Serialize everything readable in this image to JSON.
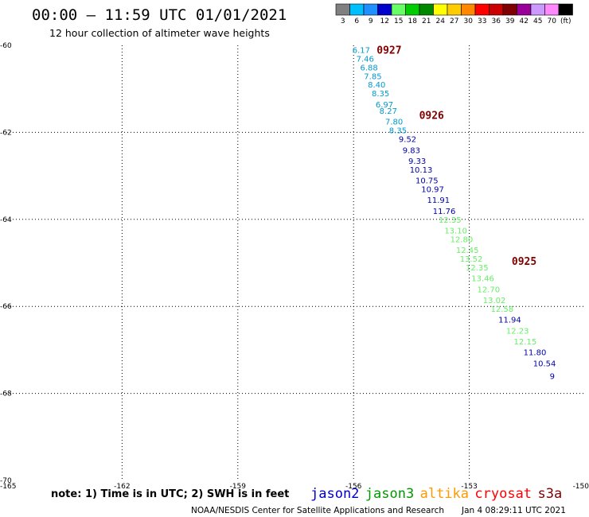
{
  "title": "00:00 – 11:59 UTC 01/01/2021",
  "subtitle": "12 hour collection of altimeter wave heights",
  "note": "note: 1) Time is in UTC; 2) SWH is in feet",
  "credit": "NOAA/NESDIS Center for Satellite Applications and Research",
  "timestamp": "Jan  4 08:29:11 UTC 2021",
  "satellites": [
    {
      "name": "jason2",
      "color": "#0000cc"
    },
    {
      "name": "jason3",
      "color": "#009900"
    },
    {
      "name": "altika",
      "color": "#ff9900"
    },
    {
      "name": "cryosat",
      "color": "#ff0000"
    },
    {
      "name": "s3a",
      "color": "#800000"
    }
  ],
  "legend": {
    "bins": [
      {
        "label": "3",
        "color": "#808080"
      },
      {
        "label": "6",
        "color": "#00bfff"
      },
      {
        "label": "9",
        "color": "#1e90ff"
      },
      {
        "label": "12",
        "color": "#0000cd"
      },
      {
        "label": "15",
        "color": "#66ff66"
      },
      {
        "label": "18",
        "color": "#00cc00"
      },
      {
        "label": "21",
        "color": "#008800"
      },
      {
        "label": "24",
        "color": "#ffff00"
      },
      {
        "label": "27",
        "color": "#ffcc00"
      },
      {
        "label": "30",
        "color": "#ff8800"
      },
      {
        "label": "33",
        "color": "#ff0000"
      },
      {
        "label": "36",
        "color": "#cc0000"
      },
      {
        "label": "39",
        "color": "#800000"
      },
      {
        "label": "42",
        "color": "#990099"
      },
      {
        "label": "45",
        "color": "#cc99ff"
      },
      {
        "label": "70",
        "color": "#ff88ff"
      },
      {
        "label": "",
        "color": "#000000"
      }
    ],
    "unit": "(ft)"
  },
  "chart_data": {
    "type": "scatter",
    "xlim": [
      -165,
      -150
    ],
    "ylim": [
      -70,
      -60
    ],
    "xticks": [
      -165,
      -162,
      -159,
      -156,
      -153,
      -150
    ],
    "yticks": [
      -60,
      -62,
      -64,
      -66,
      -68,
      -70
    ],
    "x_tick_labels": [
      "-165",
      "-162",
      "-159",
      "-156",
      "-153",
      "-150"
    ],
    "y_tick_labels": [
      "-60",
      "-62",
      "-64",
      "-66",
      "-68",
      "-70"
    ],
    "grid": true,
    "series": [
      {
        "color": "#0099cc",
        "points": [
          {
            "lon": -155.8,
            "lat": -60.1,
            "value": "6.17"
          },
          {
            "lon": -155.7,
            "lat": -60.3,
            "value": "7.46"
          },
          {
            "lon": -155.6,
            "lat": -60.5,
            "value": "6.88"
          },
          {
            "lon": -155.5,
            "lat": -60.7,
            "value": "7.85"
          },
          {
            "lon": -155.4,
            "lat": -60.9,
            "value": "8.40"
          },
          {
            "lon": -155.3,
            "lat": -61.1,
            "value": "8.35"
          },
          {
            "lon": -155.2,
            "lat": -61.35,
            "value": "6.97"
          },
          {
            "lon": -155.1,
            "lat": -61.5,
            "value": "8.27"
          },
          {
            "lon": -154.95,
            "lat": -61.75,
            "value": "7.80"
          },
          {
            "lon": -154.85,
            "lat": -61.95,
            "value": "8.35"
          }
        ]
      },
      {
        "color": "#0000aa",
        "points": [
          {
            "lon": -154.6,
            "lat": -62.15,
            "value": "9.52"
          },
          {
            "lon": -154.5,
            "lat": -62.4,
            "value": "9.83"
          },
          {
            "lon": -154.35,
            "lat": -62.65,
            "value": "9.33"
          },
          {
            "lon": -154.25,
            "lat": -62.85,
            "value": "10.13"
          },
          {
            "lon": -154.1,
            "lat": -63.1,
            "value": "10.75"
          },
          {
            "lon": -153.95,
            "lat": -63.3,
            "value": "10.97"
          },
          {
            "lon": -153.8,
            "lat": -63.55,
            "value": "11.91"
          },
          {
            "lon": -153.65,
            "lat": -63.8,
            "value": "11.76"
          }
        ]
      },
      {
        "color": "#66ee66",
        "points": [
          {
            "lon": -153.5,
            "lat": -64.0,
            "value": "12.35"
          },
          {
            "lon": -153.35,
            "lat": -64.25,
            "value": "13.10"
          },
          {
            "lon": -153.2,
            "lat": -64.45,
            "value": "12.80"
          },
          {
            "lon": -153.05,
            "lat": -64.7,
            "value": "12.45"
          },
          {
            "lon": -152.95,
            "lat": -64.9,
            "value": "13.52"
          },
          {
            "lon": -152.8,
            "lat": -65.1,
            "value": "12.35"
          },
          {
            "lon": -152.65,
            "lat": -65.35,
            "value": "13.46"
          },
          {
            "lon": -152.5,
            "lat": -65.6,
            "value": "12.70"
          },
          {
            "lon": -152.35,
            "lat": -65.85,
            "value": "13.02"
          },
          {
            "lon": -152.15,
            "lat": -66.05,
            "value": "12.58"
          }
        ]
      },
      {
        "color": "#0000aa",
        "points": [
          {
            "lon": -151.95,
            "lat": -66.3,
            "value": "11.94"
          }
        ]
      },
      {
        "color": "#66ee66",
        "points": [
          {
            "lon": -151.75,
            "lat": -66.55,
            "value": "12.23"
          },
          {
            "lon": -151.55,
            "lat": -66.8,
            "value": "12.15"
          }
        ]
      },
      {
        "color": "#0000aa",
        "points": [
          {
            "lon": -151.3,
            "lat": -67.05,
            "value": "11.80"
          },
          {
            "lon": -151.05,
            "lat": -67.3,
            "value": "10.54"
          },
          {
            "lon": -150.85,
            "lat": -67.6,
            "value": "9"
          }
        ]
      }
    ],
    "annotations": [
      {
        "lon": -155.4,
        "lat": -60.1,
        "text": "0927"
      },
      {
        "lon": -154.3,
        "lat": -61.6,
        "text": "0926"
      },
      {
        "lon": -151.9,
        "lat": -64.95,
        "text": "0925"
      }
    ]
  }
}
